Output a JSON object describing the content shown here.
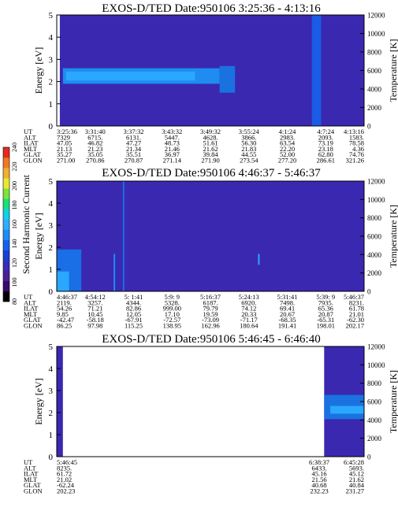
{
  "chart_data": [
    {
      "type": "heatmap",
      "title": "EXOS-D/TED   Date:950106  3:25:36 - 4:13:16",
      "ylabel": "Energy [eV]",
      "y2label": "Temperature [K]",
      "ylim": [
        0,
        5
      ],
      "yticks": [
        "0",
        "1",
        "2",
        "3",
        "4",
        "5"
      ],
      "y2lim": [
        0,
        12000
      ],
      "y2ticks": [
        "0",
        "2000",
        "4000",
        "6000",
        "8000",
        "10000",
        "12000"
      ],
      "background_color": "#3a28b0",
      "bands": [
        {
          "t0": 0.0,
          "t1": 0.01,
          "e0": 0.0,
          "e1": 5.0,
          "color": "#ffffff"
        },
        {
          "t0": 0.02,
          "t1": 0.53,
          "e0": 1.9,
          "e1": 2.6,
          "color": "#1e8cf0"
        },
        {
          "t0": 0.03,
          "t1": 0.45,
          "e0": 2.05,
          "e1": 2.45,
          "color": "#2aa8ff"
        },
        {
          "t0": 0.53,
          "t1": 0.58,
          "e0": 1.5,
          "e1": 2.7,
          "color": "#1a72e0"
        },
        {
          "t0": 0.83,
          "t1": 0.86,
          "e0": 0.0,
          "e1": 5.0,
          "color": "#1a5ce6"
        }
      ],
      "table": {
        "labels": [
          "UT",
          "ALT",
          "ILAT",
          "MLT",
          "GLAT",
          "GLON"
        ],
        "columns": [
          [
            "3:25:36",
            "7329",
            "47.05",
            "21.13",
            "35.27",
            "271.00"
          ],
          [
            "3:31:40",
            "6715.",
            "46.82",
            "21.23",
            "35.05",
            "270.86"
          ],
          [
            "3:37:32",
            "6131.",
            "47.27",
            "21.34",
            "35.51",
            "270.87"
          ],
          [
            "3:43:32",
            "5447.",
            "48.73",
            "21.46",
            "36.97",
            "271.14"
          ],
          [
            "3:49:32",
            "4628.",
            "51.61",
            "21.62",
            "39.84",
            "271.90"
          ],
          [
            "3:55:24",
            "3866.",
            "56.30",
            "21.83",
            "44.55",
            "273.54"
          ],
          [
            "4:1:24",
            "2983.",
            "63.54",
            "22.20",
            "52.00",
            "277.20"
          ],
          [
            "4:7:24",
            "2093.",
            "73.19",
            "23.18",
            "62.80",
            "286.61"
          ],
          [
            "4:13:16",
            "1583.",
            "78.58",
            "4.36",
            "74.76",
            "321.26"
          ]
        ]
      }
    },
    {
      "type": "heatmap",
      "title": "EXOS-D/TED   Date:950106  4:46:37 - 5:46:37",
      "ylabel": "Energy [eV]",
      "y2label": "Temperature [K]",
      "ylim": [
        0,
        5
      ],
      "yticks": [
        "0",
        "1",
        "2",
        "3",
        "4",
        "5"
      ],
      "y2lim": [
        0,
        12000
      ],
      "y2ticks": [
        "0",
        "2000",
        "4000",
        "6000",
        "8000",
        "10000",
        "12000"
      ],
      "background_color": "#3a28b0",
      "bands": [
        {
          "t0": 0.0,
          "t1": 0.08,
          "e0": 0.0,
          "e1": 1.9,
          "color": "#1a6ee6"
        },
        {
          "t0": 0.0,
          "t1": 0.04,
          "e0": 0.0,
          "e1": 0.9,
          "color": "#2aa8ff"
        },
        {
          "t0": 0.185,
          "t1": 0.19,
          "e0": 0.0,
          "e1": 1.7,
          "color": "#1e8cf0"
        },
        {
          "t0": 0.215,
          "t1": 0.22,
          "e0": 0.0,
          "e1": 5.0,
          "color": "#1a70e8"
        },
        {
          "t0": 0.655,
          "t1": 0.66,
          "e0": 1.2,
          "e1": 1.7,
          "color": "#2aa8ff"
        }
      ],
      "table": {
        "labels": [
          "UT",
          "ALT",
          "ILAT",
          "MLT",
          "GLAT",
          "GLON"
        ],
        "columns": [
          [
            "4:46:37",
            "2119.",
            "54.26",
            "9.85",
            "-42.47",
            "86.25"
          ],
          [
            "4:54:12",
            "3257.",
            "71.21",
            "10.45",
            "-58.18",
            "97.98"
          ],
          [
            "5: 1:41",
            "4344.",
            "82.86",
            "12.05",
            "-67.91",
            "115.25"
          ],
          [
            "5:9: 9",
            "5328.",
            "999.00",
            "17.10",
            "-72.57",
            "138.95"
          ],
          [
            "5:16:37",
            "6187.",
            "79.79",
            "19.59",
            "-73.09",
            "162.96"
          ],
          [
            "5:24:13",
            "6920.",
            "74.12",
            "20.33",
            "-71.17",
            "180.64"
          ],
          [
            "5:31:41",
            "7498.",
            "69.41",
            "20.67",
            "-68.35",
            "191.41"
          ],
          [
            "5:39: 9",
            "7935.",
            "65.36",
            "20.87",
            "-65.31",
            "198.01"
          ],
          [
            "5:46:37",
            "8231.",
            "61.78",
            "21.01",
            "-62.30",
            "202.17"
          ]
        ]
      }
    },
    {
      "type": "heatmap",
      "title": "EXOS-D/TED   Date:950106  5:46:45 - 6:46:40",
      "ylabel": "Energy [eV]",
      "y2label": "Temperature [K]",
      "ylim": [
        0,
        5
      ],
      "yticks": [
        "0",
        "1",
        "2",
        "3",
        "4",
        "5"
      ],
      "y2lim": [
        0,
        12000
      ],
      "y2ticks": [
        "0",
        "2000",
        "4000",
        "6000",
        "8000",
        "10000",
        "12000"
      ],
      "background_color": "#ffffff",
      "bands": [
        {
          "t0": 0.0,
          "t1": 0.02,
          "e0": 0.0,
          "e1": 5.0,
          "color": "#3a28b0"
        },
        {
          "t0": 0.87,
          "t1": 1.0,
          "e0": 0.0,
          "e1": 5.0,
          "color": "#3a28b0"
        },
        {
          "t0": 0.87,
          "t1": 1.0,
          "e0": 1.7,
          "e1": 2.8,
          "color": "#1a72e0"
        },
        {
          "t0": 0.89,
          "t1": 1.0,
          "e0": 1.95,
          "e1": 2.3,
          "color": "#2aa8ff"
        }
      ],
      "table": {
        "labels": [
          "UT",
          "ALT",
          "ILAT",
          "MLT",
          "GLAT",
          "GLON"
        ],
        "columns": [
          [
            "5:46:45",
            "8235.",
            "61.72",
            "21.02",
            "-62.24",
            "202.23"
          ],
          [
            "6:38:37",
            "6433.",
            "45.16",
            "21.56",
            "40.68",
            "232.23"
          ],
          [
            "6:45:28",
            "5693.",
            "45.12",
            "21.62",
            "40.84",
            "231.27"
          ]
        ]
      }
    }
  ],
  "colorbar": {
    "label": "Second Harmonic Current",
    "ticks": [
      "80",
      "100",
      "120",
      "140",
      "160",
      "180",
      "200",
      "220",
      "240"
    ],
    "colors": [
      "#000000",
      "#3a0a6a",
      "#4b1f9a",
      "#3b2ab8",
      "#1a3fd6",
      "#1660f0",
      "#1d8cf8",
      "#2bb0ff",
      "#11d0e8",
      "#18e07a",
      "#7de43a",
      "#e8e832",
      "#f0b030",
      "#f07a22",
      "#e62a1e"
    ]
  }
}
